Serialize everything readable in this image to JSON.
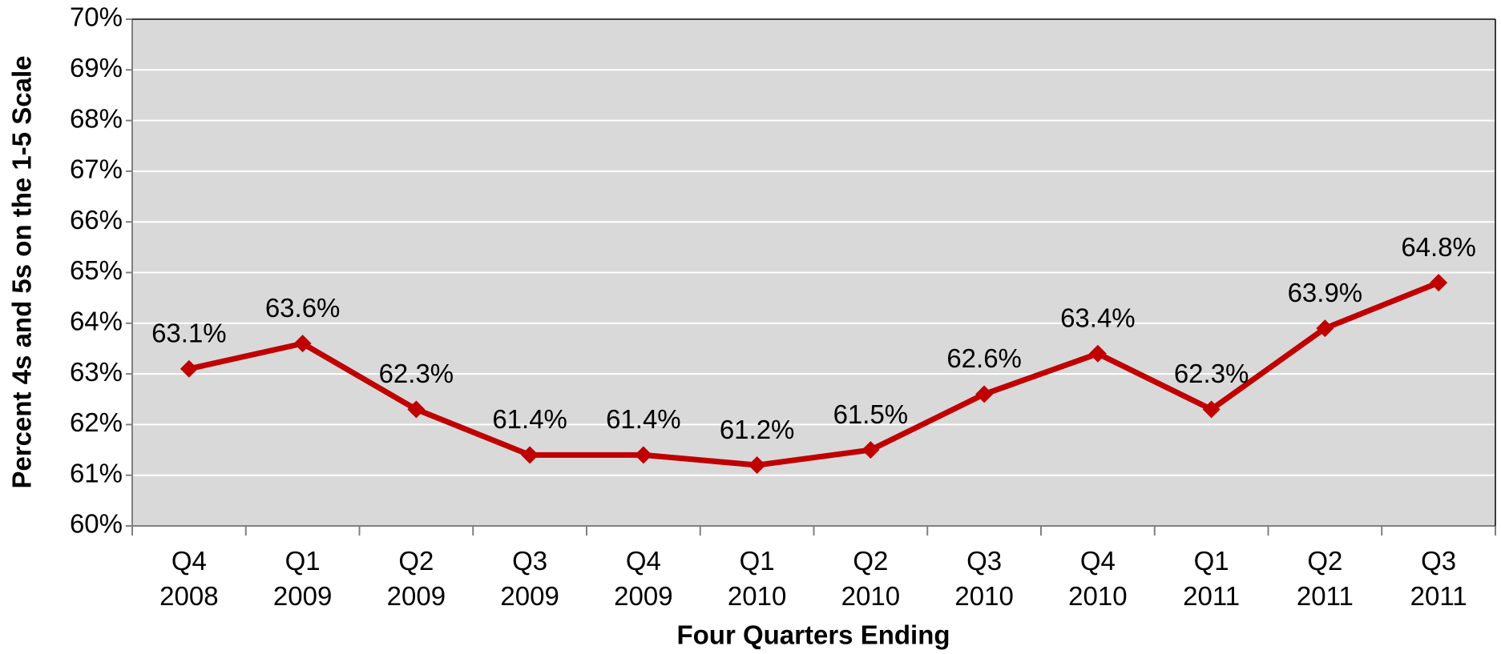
{
  "chart_data": {
    "type": "line",
    "x_label": "Four Quarters Ending",
    "y_label": "Percent 4s and 5s on the 1-5 Scale",
    "categories": [
      "Q4 2008",
      "Q1 2009",
      "Q2 2009",
      "Q3 2009",
      "Q4 2009",
      "Q1 2010",
      "Q2 2010",
      "Q3 2010",
      "Q4 2010",
      "Q1 2011",
      "Q2 2011",
      "Q3 2011"
    ],
    "series": [
      {
        "color": "#c00000",
        "values": [
          63.1,
          63.6,
          62.3,
          61.4,
          61.4,
          61.2,
          61.5,
          62.6,
          63.4,
          62.3,
          63.9,
          64.8
        ],
        "value_labels": [
          "63.1%",
          "63.6%",
          "62.3%",
          "61.4%",
          "61.4%",
          "61.2%",
          "61.5%",
          "62.6%",
          "63.4%",
          "62.3%",
          "63.9%",
          "64.8%"
        ]
      }
    ],
    "ylim": [
      60,
      70
    ],
    "yticks": [
      {
        "value": 60,
        "label": "60%"
      },
      {
        "value": 61,
        "label": "61%"
      },
      {
        "value": 62,
        "label": "62%"
      },
      {
        "value": 63,
        "label": "63%"
      },
      {
        "value": 64,
        "label": "64%"
      },
      {
        "value": 65,
        "label": "65%"
      },
      {
        "value": 66,
        "label": "66%"
      },
      {
        "value": 67,
        "label": "67%"
      },
      {
        "value": 68,
        "label": "68%"
      },
      {
        "value": 69,
        "label": "69%"
      },
      {
        "value": 70,
        "label": "70%"
      }
    ],
    "grid": true
  }
}
